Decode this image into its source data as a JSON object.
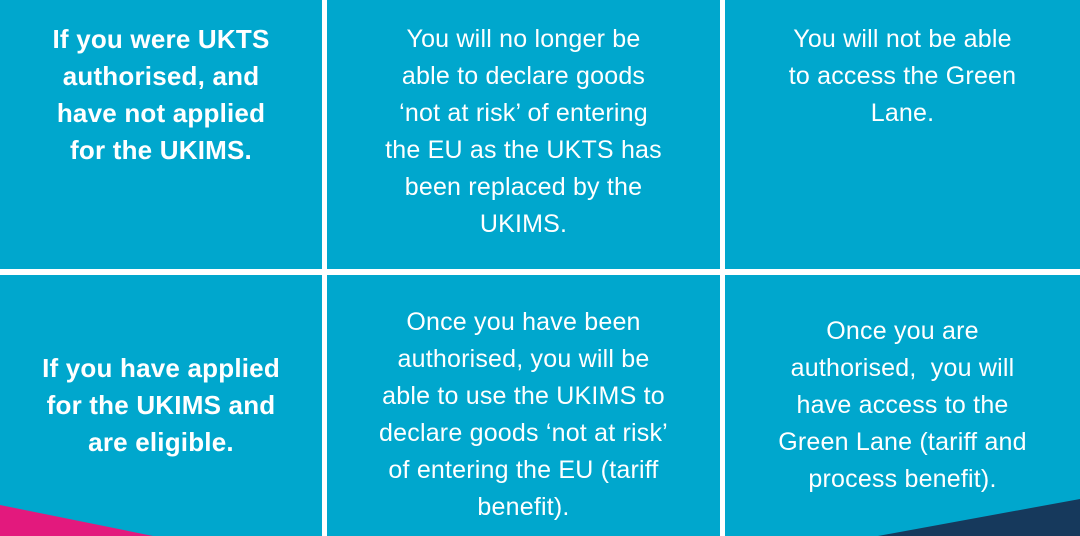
{
  "theme": {
    "background": "#00A7CD",
    "divider": "#FFFFFF",
    "text": "#FFFFFF",
    "pink": "#E3197D",
    "navy": "#16395C"
  },
  "grid": {
    "rows": [
      {
        "cells": [
          {
            "role": "row-header",
            "bold": true,
            "lines": [
              "If you were UKTS",
              "authorised, and",
              "have not applied",
              "for the UKIMS."
            ]
          },
          {
            "role": "body",
            "bold": false,
            "lines": [
              "You will no longer be",
              "able to declare goods",
              "‘not at risk’ of entering",
              "the EU as the UKTS has",
              "been replaced by the",
              "UKIMS."
            ]
          },
          {
            "role": "body",
            "bold": false,
            "lines": [
              "You will not be able",
              "to access the Green",
              "Lane."
            ]
          }
        ]
      },
      {
        "cells": [
          {
            "role": "row-header",
            "bold": true,
            "lines": [
              "If you have applied",
              "for the UKIMS and",
              "are eligible."
            ]
          },
          {
            "role": "body",
            "bold": false,
            "lines": [
              "Once you have been",
              "authorised, you will be",
              "able to use the UKIMS to",
              "declare goods ‘not at risk’",
              "of entering the EU (tariff",
              "benefit)."
            ]
          },
          {
            "role": "body",
            "bold": false,
            "lines": [
              "Once you are",
              "authorised,  you will",
              "have access to the",
              "Green Lane (tariff and",
              "process benefit)."
            ]
          }
        ]
      }
    ]
  },
  "decorations": {
    "pink_wedge": "bottom-left-triangle",
    "navy_wedge": "bottom-right-triangle"
  }
}
